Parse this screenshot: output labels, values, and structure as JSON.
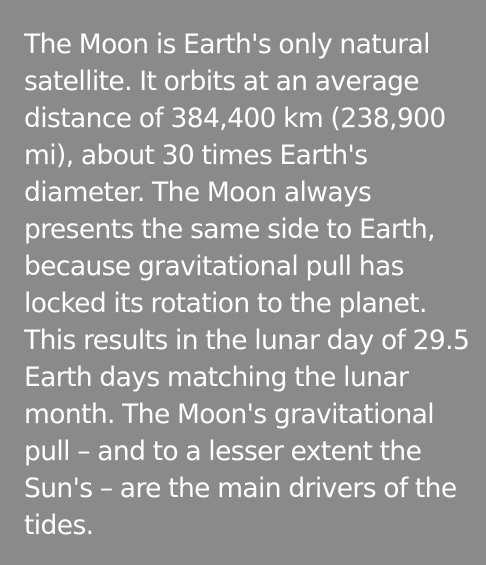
{
  "colors": {
    "background": "#8a8a8a",
    "text": "#ffffff"
  },
  "paragraph": {
    "lines": [
      "The Moon is Earth's only natural",
      "satellite. It orbits at an average",
      "distance of 384,400 km (238,900",
      "mi), about 30 times Earth's",
      "diameter. The Moon always",
      "presents the same side to Earth,",
      "because gravitational pull has",
      "locked its rotation to the planet.",
      "This results in the lunar day of 29.5",
      "Earth days matching the lunar",
      "month. The Moon's gravitational",
      "pull – and to a lesser extent the",
      "Sun's – are the main drivers of the",
      "tides."
    ]
  }
}
